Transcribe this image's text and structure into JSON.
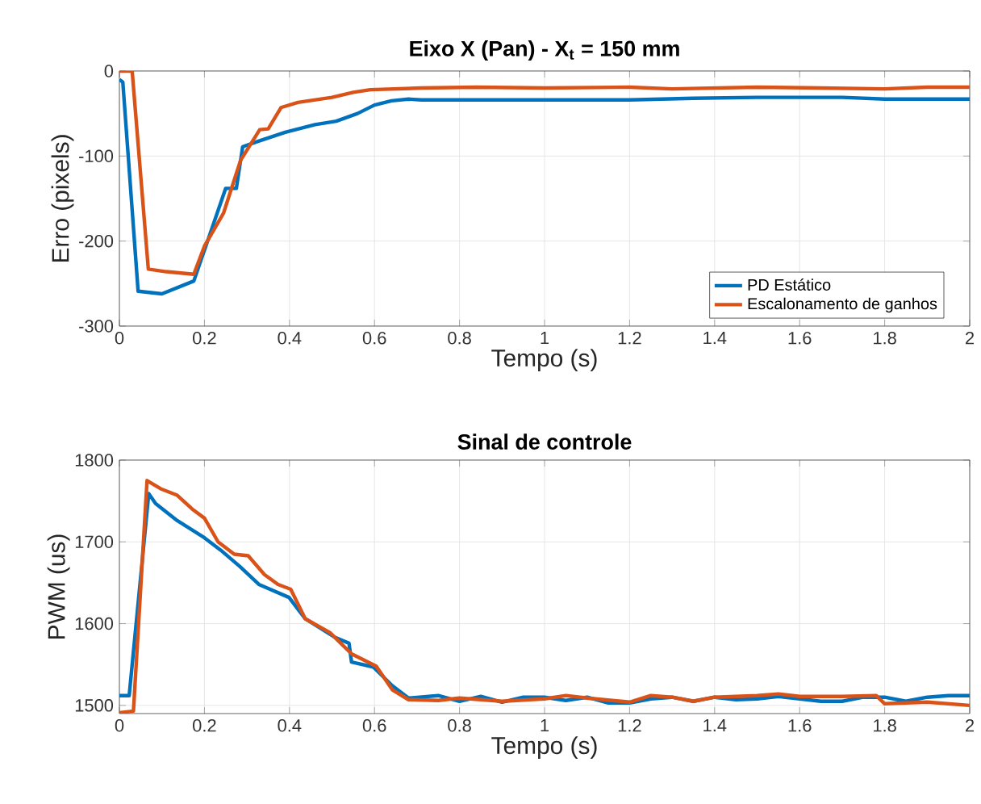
{
  "chart_data": [
    {
      "type": "line",
      "title": "Eixo X (Pan) - X$_{t}$ = 150 mm",
      "xlabel": "Tempo (s)",
      "ylabel": "Erro (pixels)",
      "xlim": [
        0,
        2
      ],
      "ylim": [
        -300,
        0
      ],
      "xticks": [
        0,
        0.2,
        0.4,
        0.6,
        0.8,
        1,
        1.2,
        1.4,
        1.6,
        1.8,
        2
      ],
      "yticks": [
        -300,
        -200,
        -100,
        0
      ],
      "grid": true,
      "legend": "bottom right",
      "series": [
        {
          "name": "PD Estático",
          "color": "#0072bd",
          "x": [
            0,
            0.008,
            0.044,
            0.1,
            0.175,
            0.25,
            0.275,
            0.29,
            0.33,
            0.39,
            0.46,
            0.51,
            0.56,
            0.6,
            0.64,
            0.68,
            0.71,
            0.8,
            1.0,
            1.2,
            1.35,
            1.5,
            1.7,
            1.8,
            2.0
          ],
          "values": [
            -10,
            -13,
            -259,
            -262,
            -247,
            -138,
            -138,
            -89,
            -82,
            -72,
            -63,
            -59,
            -50,
            -40,
            -35,
            -33,
            -34,
            -34,
            -34,
            -34,
            -32,
            -31,
            -31,
            -33,
            -33
          ]
        },
        {
          "name": "Escalonamento de ganhos",
          "color": "#d95319",
          "x": [
            0,
            0.03,
            0.068,
            0.11,
            0.175,
            0.2,
            0.245,
            0.285,
            0.33,
            0.35,
            0.38,
            0.42,
            0.5,
            0.55,
            0.59,
            0.71,
            0.84,
            1.0,
            1.2,
            1.3,
            1.5,
            1.8,
            1.9,
            2.0
          ],
          "values": [
            0,
            0,
            -233,
            -236,
            -239,
            -206,
            -167,
            -105,
            -69,
            -68,
            -43,
            -37,
            -31,
            -25,
            -22,
            -20,
            -19,
            -20,
            -19,
            -21,
            -19,
            -21,
            -19,
            -19
          ]
        }
      ]
    },
    {
      "type": "line",
      "title": "Sinal de controle",
      "xlabel": "Tempo (s)",
      "ylabel": "PWM (us)",
      "xlim": [
        0,
        2
      ],
      "ylim": [
        1490,
        1800
      ],
      "xticks": [
        0,
        0.2,
        0.4,
        0.6,
        0.8,
        1,
        1.2,
        1.4,
        1.6,
        1.8,
        2
      ],
      "yticks": [
        1500,
        1600,
        1700,
        1800
      ],
      "grid": true,
      "series": [
        {
          "color": "#0072bd",
          "x": [
            0,
            0.023,
            0.069,
            0.085,
            0.136,
            0.2,
            0.238,
            0.283,
            0.328,
            0.399,
            0.437,
            0.508,
            0.54,
            0.546,
            0.597,
            0.642,
            0.68,
            0.75,
            0.8,
            0.85,
            0.9,
            0.95,
            1.0,
            1.05,
            1.1,
            1.15,
            1.2,
            1.25,
            1.3,
            1.35,
            1.4,
            1.45,
            1.5,
            1.55,
            1.6,
            1.65,
            1.7,
            1.75,
            1.8,
            1.85,
            1.9,
            1.95,
            2.0
          ],
          "values": [
            1512,
            1512,
            1759,
            1747,
            1726,
            1705,
            1690,
            1670,
            1648,
            1632,
            1606,
            1583,
            1576,
            1553,
            1547,
            1524,
            1509,
            1512,
            1505,
            1511,
            1504,
            1510,
            1510,
            1506,
            1510,
            1503,
            1503,
            1508,
            1510,
            1505,
            1510,
            1507,
            1508,
            1511,
            1508,
            1505,
            1505,
            1510,
            1510,
            1505,
            1510,
            1512,
            1512
          ]
        },
        {
          "color": "#d95319",
          "x": [
            0,
            0.033,
            0.065,
            0.097,
            0.136,
            0.174,
            0.2,
            0.232,
            0.27,
            0.303,
            0.341,
            0.373,
            0.403,
            0.437,
            0.495,
            0.546,
            0.604,
            0.642,
            0.68,
            0.75,
            0.8,
            0.9,
            1.0,
            1.05,
            1.1,
            1.2,
            1.25,
            1.3,
            1.35,
            1.4,
            1.5,
            1.55,
            1.6,
            1.7,
            1.78,
            1.8,
            1.9,
            2.0
          ],
          "values": [
            1491,
            1493,
            1775,
            1765,
            1757,
            1739,
            1729,
            1700,
            1685,
            1683,
            1660,
            1648,
            1642,
            1606,
            1589,
            1563,
            1548,
            1519,
            1507,
            1506,
            1509,
            1505,
            1508,
            1512,
            1509,
            1504,
            1512,
            1510,
            1505,
            1510,
            1512,
            1514,
            1511,
            1511,
            1512,
            1502,
            1504,
            1500
          ]
        }
      ]
    }
  ]
}
